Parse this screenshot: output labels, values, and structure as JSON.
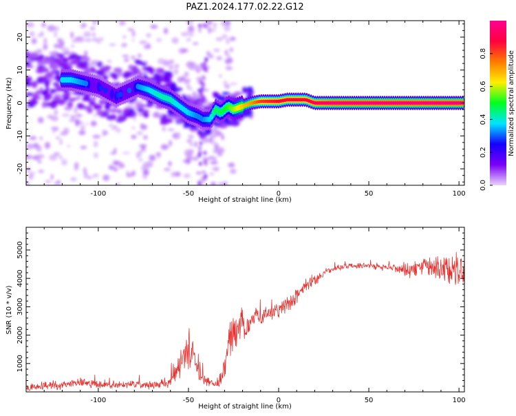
{
  "figure": {
    "title": "PAZ1.2024.177.02.22.G12"
  },
  "chart_data": [
    {
      "type": "heatmap",
      "xlabel": "Height of straight line (km)",
      "ylabel": "Frequency (Hz)",
      "xlim": [
        -140,
        103
      ],
      "ylim": [
        -25,
        25
      ],
      "xticks": [
        -100,
        -50,
        0,
        50,
        100
      ],
      "yticks": [
        -20,
        -10,
        0,
        10,
        20
      ],
      "grid": false,
      "colorbar": {
        "label": "Normalized spectral amplitude",
        "range": [
          0,
          1
        ],
        "ticks": [
          0.0,
          0.2,
          0.4,
          0.6,
          0.8
        ],
        "colormap": [
          "#e9d3fb",
          "#7a00f5",
          "#1500ff",
          "#00e5ff",
          "#00ff20",
          "#ffee00",
          "#ff7a00",
          "#ff0040",
          "#ff0090"
        ]
      },
      "ridge": {
        "x": [
          -115,
          -100,
          -90,
          -78,
          -72,
          -65,
          -60,
          -55,
          -50,
          -45,
          -42,
          -38,
          -35,
          -32,
          -28,
          -25,
          -20,
          -15,
          -10,
          0,
          5,
          10,
          15,
          20,
          30,
          50,
          75,
          103
        ],
        "y": [
          7,
          5,
          2,
          5,
          4,
          2,
          1,
          -1,
          -3,
          -4,
          -5,
          -5,
          -2,
          -3,
          -1,
          -2,
          -1,
          0,
          0.5,
          0.5,
          1,
          1,
          1,
          0,
          0,
          0,
          0,
          0
        ],
        "amplitude": [
          0.35,
          0.25,
          0.25,
          0.3,
          0.35,
          0.4,
          0.4,
          0.35,
          0.35,
          0.3,
          0.3,
          0.35,
          0.45,
          0.45,
          0.5,
          0.55,
          0.65,
          0.7,
          0.8,
          0.85,
          0.85,
          0.85,
          0.85,
          0.9,
          0.95,
          0.95,
          0.95,
          0.95
        ]
      }
    },
    {
      "type": "line",
      "xlabel": "Height of straight line (km)",
      "ylabel": "SNR (10 * v/v)",
      "xlim": [
        -140,
        103
      ],
      "ylim": [
        0,
        5800
      ],
      "xticks": [
        -100,
        -50,
        0,
        50,
        100
      ],
      "yticks": [
        1000,
        2000,
        3000,
        4000,
        5000
      ],
      "grid": false,
      "color": "#e8312f",
      "series": [
        {
          "x": [
            -140,
            -130,
            -120,
            -110,
            -100,
            -90,
            -80,
            -70,
            -62,
            -58,
            -55,
            -52,
            -50,
            -48,
            -45,
            -42,
            -38,
            -35,
            -32,
            -30,
            -28,
            -25,
            -22,
            -20,
            -17,
            -14,
            -10,
            -5,
            0,
            5,
            10,
            15,
            20,
            25,
            30,
            35,
            40,
            50,
            60,
            70,
            80,
            90,
            95,
            100,
            103
          ],
          "y": [
            150,
            200,
            260,
            300,
            280,
            250,
            260,
            230,
            300,
            500,
            900,
            1300,
            1600,
            1300,
            900,
            500,
            300,
            250,
            500,
            900,
            1600,
            2200,
            2500,
            2300,
            2200,
            2600,
            2700,
            2800,
            2900,
            3100,
            3400,
            3800,
            3900,
            4200,
            4350,
            4400,
            4450,
            4450,
            4400,
            4300,
            4400,
            4350,
            4300,
            4400,
            4200
          ],
          "spread": [
            120,
            180,
            200,
            200,
            200,
            180,
            180,
            180,
            250,
            400,
            600,
            800,
            900,
            800,
            600,
            350,
            200,
            180,
            400,
            700,
            900,
            900,
            900,
            800,
            500,
            450,
            400,
            350,
            350,
            350,
            350,
            300,
            250,
            150,
            150,
            120,
            120,
            120,
            150,
            300,
            400,
            600,
            700,
            800,
            900
          ]
        }
      ]
    }
  ]
}
